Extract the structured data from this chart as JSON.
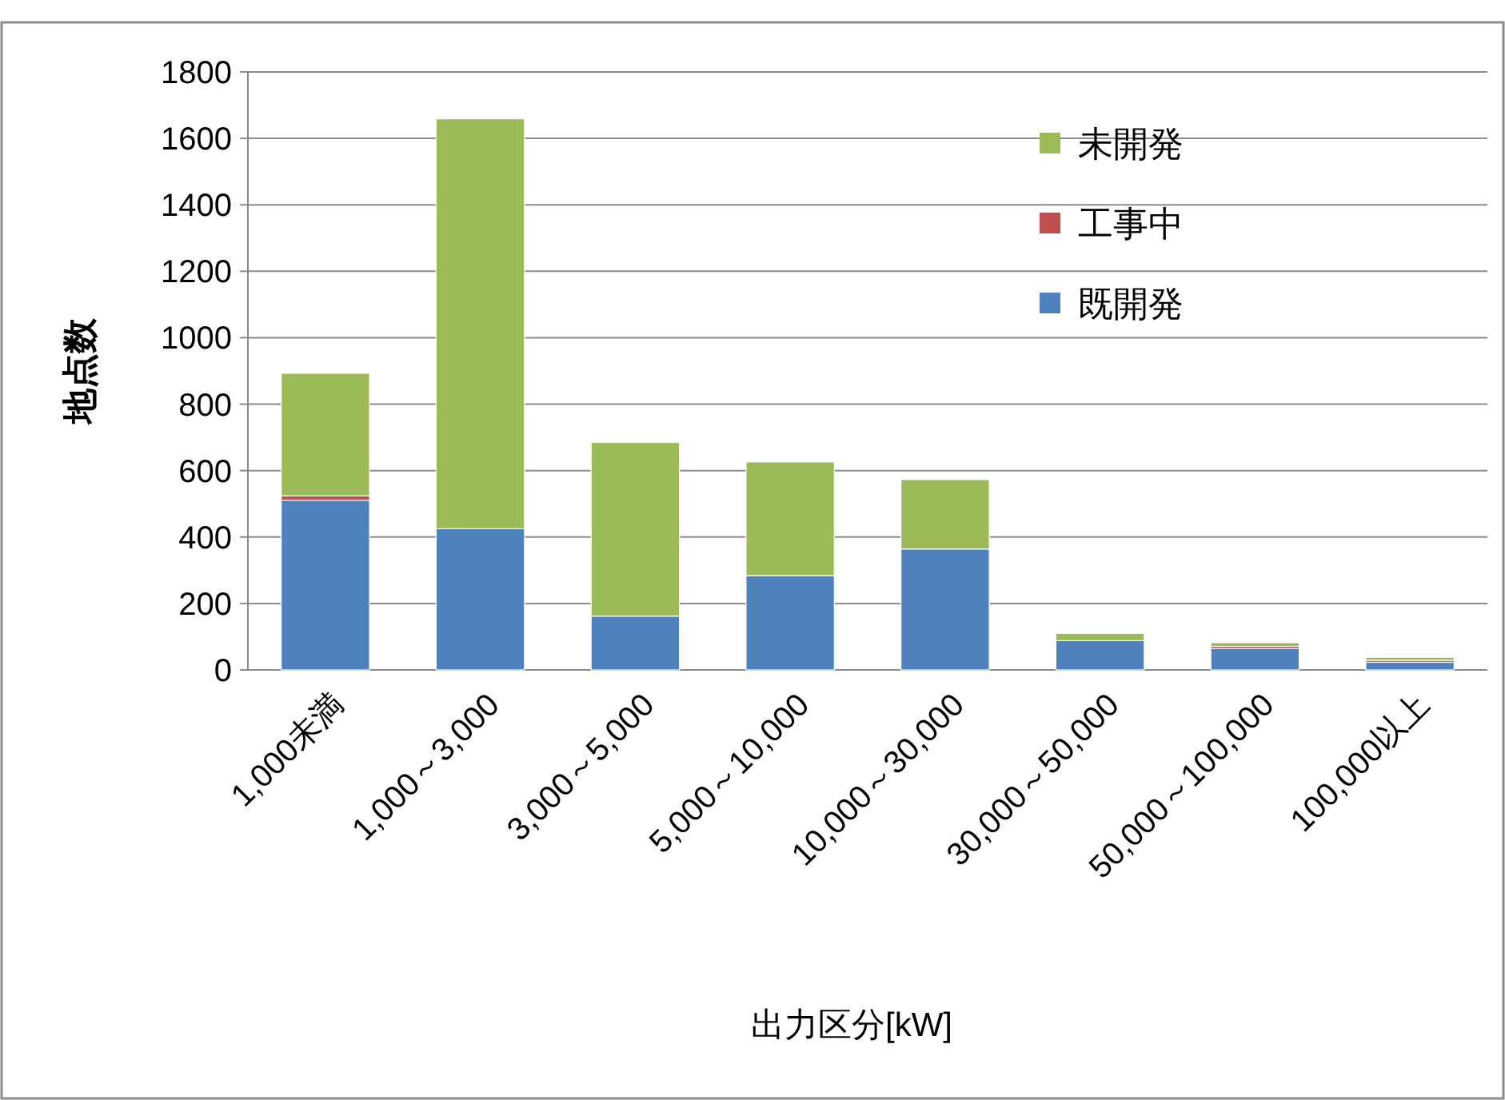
{
  "chart_data": {
    "type": "bar",
    "stacked": true,
    "xlabel": "出力区分[kW]",
    "ylabel": "地点数",
    "categories": [
      "1,000未満",
      "1,000～3,000",
      "3,000～5,000",
      "5,000～10,000",
      "10,000～30,000",
      "30,000～50,000",
      "50,000～100,000",
      "100,000以上"
    ],
    "series": [
      {
        "name": "既開発",
        "color": "#4f81bd",
        "values": [
          511,
          425,
          162,
          284,
          364,
          88,
          64,
          23
        ]
      },
      {
        "name": "工事中",
        "color": "#c0504d",
        "values": [
          13,
          0,
          0,
          0,
          0,
          0,
          7,
          6
        ]
      },
      {
        "name": "未開発",
        "color": "#9bbb59",
        "values": [
          369,
          1234,
          523,
          342,
          209,
          22,
          11,
          9
        ]
      }
    ],
    "ylim": [
      0,
      1800
    ],
    "yticks": [
      0,
      200,
      400,
      600,
      800,
      1000,
      1200,
      1400,
      1600,
      1800
    ],
    "grid": "y",
    "legend": "top right"
  }
}
